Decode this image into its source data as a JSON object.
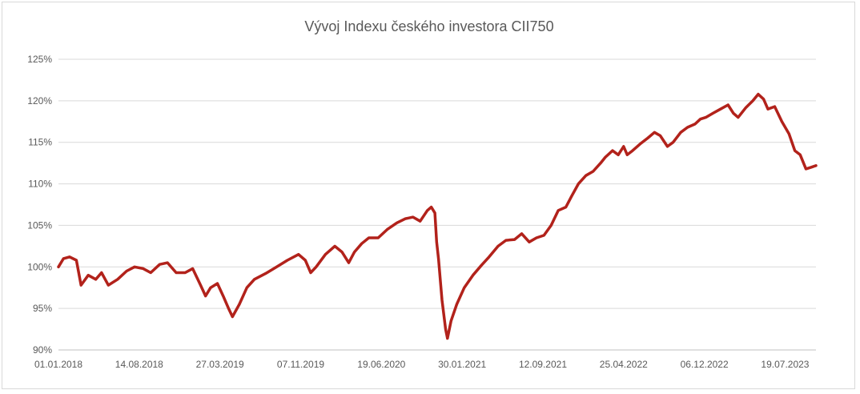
{
  "chart_data": {
    "type": "line",
    "title": "Vývoj Indexu českého investora CII750",
    "xlabel": "",
    "ylabel": "",
    "ylim": [
      0.9,
      1.25
    ],
    "y_ticks": [
      {
        "value": 0.9,
        "label": "90%"
      },
      {
        "value": 0.95,
        "label": "95%"
      },
      {
        "value": 1.0,
        "label": "100%"
      },
      {
        "value": 1.05,
        "label": "105%"
      },
      {
        "value": 1.1,
        "label": "110%"
      },
      {
        "value": 1.15,
        "label": "115%"
      },
      {
        "value": 1.2,
        "label": "120%"
      },
      {
        "value": 1.25,
        "label": "125%"
      }
    ],
    "x_ticks": [
      "01.01.2018",
      "14.08.2018",
      "27.03.2019",
      "07.11.2019",
      "19.06.2020",
      "30.01.2021",
      "12.09.2021",
      "25.04.2022",
      "06.12.2022",
      "19.07.2023"
    ],
    "xlim": [
      "2018-01-01",
      "2023-10-13"
    ],
    "grid": true,
    "color": "#b2221b",
    "series": [
      {
        "name": "",
        "points": [
          [
            "2018-01-01",
            1.0
          ],
          [
            "2018-01-15",
            1.01
          ],
          [
            "2018-02-01",
            1.012
          ],
          [
            "2018-02-20",
            1.008
          ],
          [
            "2018-03-05",
            0.978
          ],
          [
            "2018-03-25",
            0.99
          ],
          [
            "2018-04-15",
            0.985
          ],
          [
            "2018-05-01",
            0.993
          ],
          [
            "2018-05-20",
            0.978
          ],
          [
            "2018-06-15",
            0.985
          ],
          [
            "2018-07-10",
            0.995
          ],
          [
            "2018-08-01",
            1.0
          ],
          [
            "2018-08-25",
            0.998
          ],
          [
            "2018-09-15",
            0.993
          ],
          [
            "2018-10-10",
            1.003
          ],
          [
            "2018-11-01",
            1.005
          ],
          [
            "2018-11-25",
            0.993
          ],
          [
            "2018-12-20",
            0.993
          ],
          [
            "2019-01-10",
            0.998
          ],
          [
            "2019-02-01",
            0.978
          ],
          [
            "2019-02-15",
            0.965
          ],
          [
            "2019-03-01",
            0.975
          ],
          [
            "2019-03-20",
            0.98
          ],
          [
            "2019-04-05",
            0.965
          ],
          [
            "2019-04-20",
            0.95
          ],
          [
            "2019-05-01",
            0.94
          ],
          [
            "2019-05-20",
            0.955
          ],
          [
            "2019-06-10",
            0.975
          ],
          [
            "2019-07-01",
            0.985
          ],
          [
            "2019-08-01",
            0.992
          ],
          [
            "2019-09-01",
            1.0
          ],
          [
            "2019-10-01",
            1.008
          ],
          [
            "2019-11-01",
            1.015
          ],
          [
            "2019-11-20",
            1.008
          ],
          [
            "2019-12-05",
            0.993
          ],
          [
            "2019-12-20",
            1.0
          ],
          [
            "2020-01-15",
            1.015
          ],
          [
            "2020-02-10",
            1.025
          ],
          [
            "2020-03-01",
            1.018
          ],
          [
            "2020-03-20",
            1.005
          ],
          [
            "2020-04-05",
            1.018
          ],
          [
            "2020-04-25",
            1.028
          ],
          [
            "2020-05-15",
            1.035
          ],
          [
            "2020-06-10",
            1.035
          ],
          [
            "2020-07-05",
            1.045
          ],
          [
            "2020-08-01",
            1.053
          ],
          [
            "2020-08-25",
            1.058
          ],
          [
            "2020-09-15",
            1.06
          ],
          [
            "2020-10-05",
            1.055
          ],
          [
            "2020-10-25",
            1.068
          ],
          [
            "2020-11-05",
            1.072
          ],
          [
            "2020-11-15",
            1.065
          ],
          [
            "2020-11-20",
            1.03
          ],
          [
            "2020-11-25",
            1.01
          ],
          [
            "2020-12-05",
            0.96
          ],
          [
            "2020-12-15",
            0.925
          ],
          [
            "2020-12-20",
            0.914
          ],
          [
            "2020-12-30",
            0.935
          ],
          [
            "2021-01-15",
            0.955
          ],
          [
            "2021-02-05",
            0.975
          ],
          [
            "2021-03-01",
            0.99
          ],
          [
            "2021-03-25",
            1.002
          ],
          [
            "2021-04-15",
            1.012
          ],
          [
            "2021-05-10",
            1.025
          ],
          [
            "2021-06-01",
            1.032
          ],
          [
            "2021-06-25",
            1.033
          ],
          [
            "2021-07-15",
            1.04
          ],
          [
            "2021-08-05",
            1.03
          ],
          [
            "2021-08-25",
            1.035
          ],
          [
            "2021-09-15",
            1.038
          ],
          [
            "2021-10-05",
            1.05
          ],
          [
            "2021-10-25",
            1.068
          ],
          [
            "2021-11-15",
            1.072
          ],
          [
            "2021-12-01",
            1.085
          ],
          [
            "2021-12-20",
            1.1
          ],
          [
            "2022-01-10",
            1.11
          ],
          [
            "2022-01-30",
            1.115
          ],
          [
            "2022-02-20",
            1.125
          ],
          [
            "2022-03-05",
            1.132
          ],
          [
            "2022-03-25",
            1.14
          ],
          [
            "2022-04-10",
            1.135
          ],
          [
            "2022-04-25",
            1.145
          ],
          [
            "2022-05-05",
            1.135
          ],
          [
            "2022-05-20",
            1.14
          ],
          [
            "2022-06-10",
            1.148
          ],
          [
            "2022-07-01",
            1.155
          ],
          [
            "2022-07-20",
            1.162
          ],
          [
            "2022-08-05",
            1.158
          ],
          [
            "2022-08-25",
            1.145
          ],
          [
            "2022-09-10",
            1.15
          ],
          [
            "2022-10-01",
            1.162
          ],
          [
            "2022-10-20",
            1.168
          ],
          [
            "2022-11-10",
            1.172
          ],
          [
            "2022-11-25",
            1.178
          ],
          [
            "2022-12-10",
            1.18
          ],
          [
            "2022-12-30",
            1.185
          ],
          [
            "2023-01-20",
            1.19
          ],
          [
            "2023-02-10",
            1.195
          ],
          [
            "2023-02-25",
            1.185
          ],
          [
            "2023-03-10",
            1.18
          ],
          [
            "2023-04-01",
            1.192
          ],
          [
            "2023-04-20",
            1.2
          ],
          [
            "2023-05-05",
            1.208
          ],
          [
            "2023-05-20",
            1.202
          ],
          [
            "2023-06-01",
            1.19
          ],
          [
            "2023-06-20",
            1.193
          ],
          [
            "2023-07-10",
            1.175
          ],
          [
            "2023-07-30",
            1.16
          ],
          [
            "2023-08-15",
            1.14
          ],
          [
            "2023-08-30",
            1.135
          ],
          [
            "2023-09-15",
            1.118
          ],
          [
            "2023-09-30",
            1.12
          ],
          [
            "2023-10-13",
            1.122
          ]
        ]
      }
    ]
  }
}
